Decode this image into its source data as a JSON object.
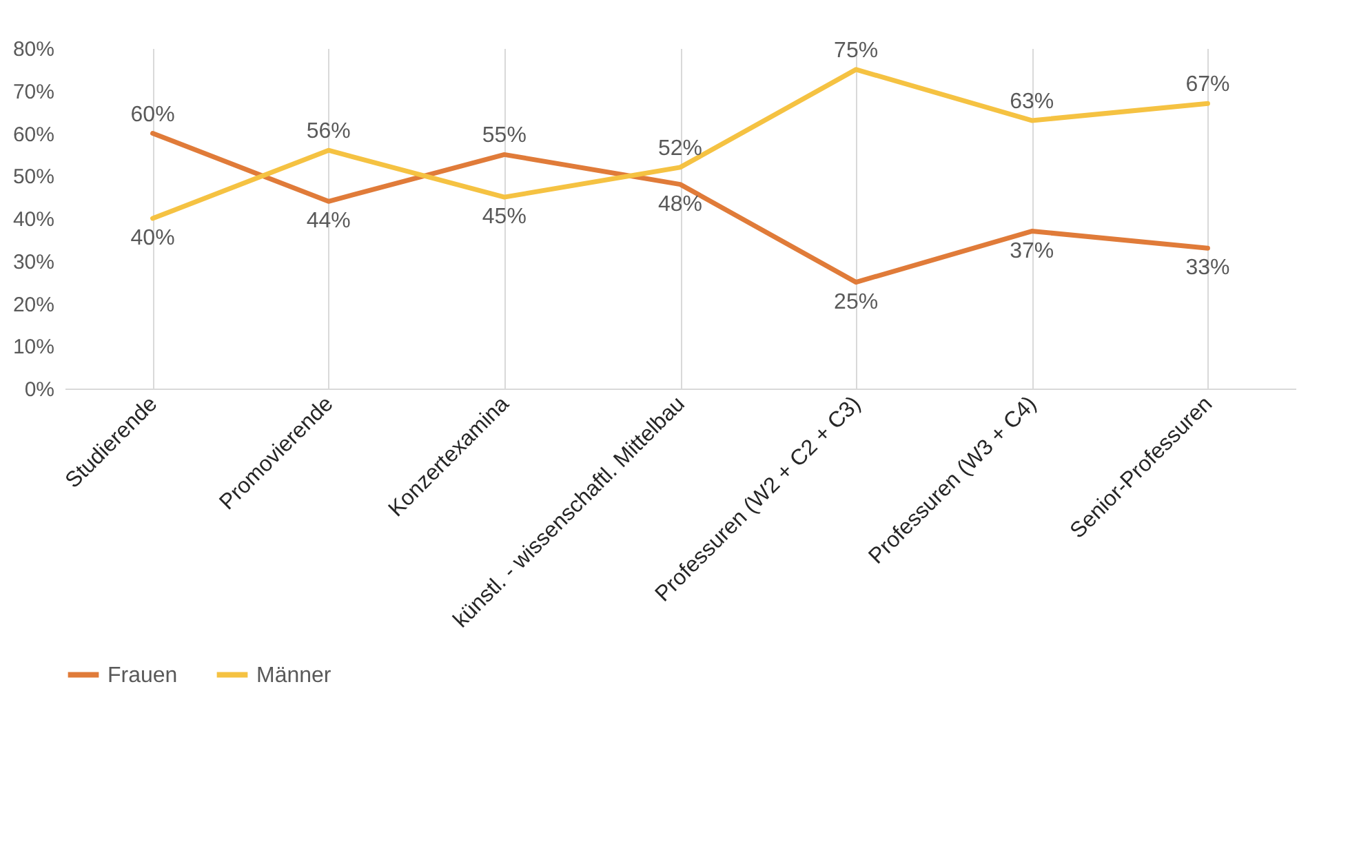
{
  "chart_data": {
    "type": "line",
    "categories": [
      "Studierende",
      "Promovierende",
      "Konzertexamina",
      "künstl. - wissenschaftl. Mittelbau",
      "Professuren (W2 + C2 + C3)",
      "Professuren (W3 + C4)",
      "Senior-Professuren"
    ],
    "series": [
      {
        "name": "Frauen",
        "color": "#e07b39",
        "values": [
          60,
          44,
          55,
          48,
          25,
          37,
          33
        ],
        "value_labels": [
          "60%",
          "44%",
          "55%",
          "48%",
          "25%",
          "37%",
          "33%"
        ]
      },
      {
        "name": "Männer",
        "color": "#f5c242",
        "values": [
          40,
          56,
          45,
          52,
          75,
          63,
          67
        ],
        "value_labels": [
          "40%",
          "56%",
          "45%",
          "52%",
          "75%",
          "63%",
          "67%"
        ]
      }
    ],
    "ylim": [
      0,
      80
    ],
    "yticks": [
      {
        "value": 0,
        "label": "0%"
      },
      {
        "value": 10,
        "label": "10%"
      },
      {
        "value": 20,
        "label": "20%"
      },
      {
        "value": 30,
        "label": "30%"
      },
      {
        "value": 40,
        "label": "40%"
      },
      {
        "value": 50,
        "label": "50%"
      },
      {
        "value": 60,
        "label": "60%"
      },
      {
        "value": 70,
        "label": "70%"
      },
      {
        "value": 80,
        "label": "80%"
      }
    ],
    "grid": "x",
    "legend": "bottom",
    "marker": "none",
    "line_style": "solid"
  }
}
